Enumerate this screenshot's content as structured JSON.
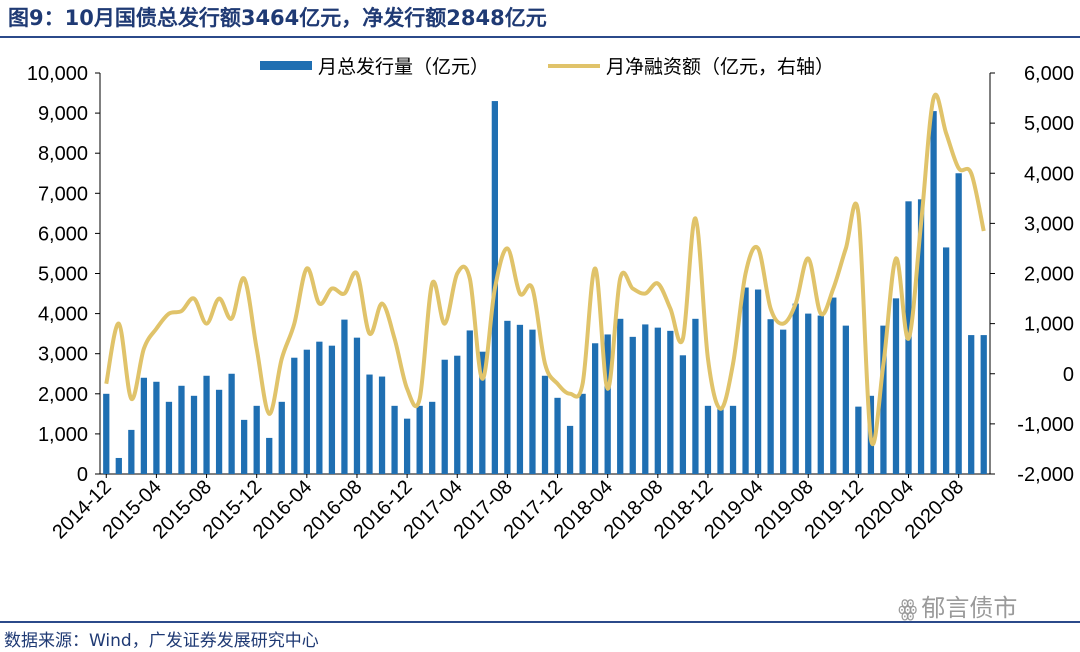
{
  "header": {
    "title": "图9：10月国债总发行额3464亿元，净发行额2848亿元"
  },
  "footer": {
    "source": "数据来源：Wind，广发证券发展研究中心"
  },
  "watermark": {
    "icon": "wechat-icon",
    "text": "郁言债市"
  },
  "colors": {
    "bar": "#1f6fb2",
    "line": "#e0c36a",
    "text": "#1f3a74"
  },
  "chart_data": {
    "type": "bar+line",
    "title": "10月国债总发行额3464亿元，净发行额2848亿元",
    "legend": {
      "placement": "top",
      "entries": [
        "月总发行量（亿元）",
        "月净融资额（亿元，右轴）"
      ]
    },
    "categories": [
      "2014-12",
      "2015-01",
      "2015-02",
      "2015-03",
      "2015-04",
      "2015-05",
      "2015-06",
      "2015-07",
      "2015-08",
      "2015-09",
      "2015-10",
      "2015-11",
      "2015-12",
      "2016-01",
      "2016-02",
      "2016-03",
      "2016-04",
      "2016-05",
      "2016-06",
      "2016-07",
      "2016-08",
      "2016-09",
      "2016-10",
      "2016-11",
      "2016-12",
      "2017-01",
      "2017-02",
      "2017-03",
      "2017-04",
      "2017-05",
      "2017-06",
      "2017-07",
      "2017-08",
      "2017-09",
      "2017-10",
      "2017-11",
      "2017-12",
      "2018-01",
      "2018-02",
      "2018-03",
      "2018-04",
      "2018-05",
      "2018-06",
      "2018-07",
      "2018-08",
      "2018-09",
      "2018-10",
      "2018-11",
      "2018-12",
      "2019-01",
      "2019-02",
      "2019-03",
      "2019-04",
      "2019-05",
      "2019-06",
      "2019-07",
      "2019-08",
      "2019-09",
      "2019-10",
      "2019-11",
      "2019-12",
      "2020-01",
      "2020-02",
      "2020-03",
      "2020-04",
      "2020-05",
      "2020-06",
      "2020-07",
      "2020-08",
      "2020-09",
      "2020-10"
    ],
    "x_tick_labels": [
      "2014-12",
      "2015-04",
      "2015-08",
      "2015-12",
      "2016-04",
      "2016-08",
      "2016-12",
      "2017-04",
      "2017-08",
      "2017-12",
      "2018-04",
      "2018-08",
      "2018-12",
      "2019-04",
      "2019-08",
      "2019-12",
      "2020-04",
      "2020-08"
    ],
    "series": [
      {
        "name": "月总发行量（亿元）",
        "type": "bar",
        "axis": "left",
        "values": [
          2000,
          400,
          1100,
          2400,
          2300,
          1800,
          2200,
          1950,
          2450,
          2100,
          2500,
          1350,
          1700,
          900,
          1800,
          2900,
          3100,
          3300,
          3200,
          3850,
          3400,
          2480,
          2430,
          1700,
          1380,
          1700,
          1800,
          2850,
          2950,
          3580,
          3050,
          9300,
          3820,
          3720,
          3600,
          2450,
          1900,
          1200,
          2000,
          3260,
          3480,
          3870,
          3420,
          3730,
          3650,
          3570,
          2960,
          3870,
          1700,
          1620,
          1700,
          4650,
          4600,
          3860,
          3600,
          4250,
          4000,
          3950,
          4400,
          3700,
          1680,
          1950,
          3700,
          4380,
          6800,
          6850,
          9050,
          5650,
          7500,
          3464,
          3464
        ]
      },
      {
        "name": "月净融资额（亿元，右轴）",
        "type": "line",
        "axis": "right",
        "values": [
          -200,
          1000,
          -500,
          500,
          900,
          1200,
          1250,
          1500,
          1000,
          1500,
          1100,
          1900,
          500,
          -800,
          300,
          1000,
          2100,
          1400,
          1700,
          1600,
          2000,
          800,
          1400,
          700,
          -300,
          -500,
          1800,
          1000,
          2000,
          1900,
          -100,
          1700,
          2500,
          1600,
          1700,
          200,
          -200,
          -400,
          -200,
          2100,
          -300,
          1900,
          1700,
          1600,
          1800,
          1300,
          700,
          3100,
          300,
          -700,
          200,
          2000,
          2500,
          1300,
          1000,
          1400,
          2300,
          1200,
          1700,
          2500,
          3200,
          -1300,
          200,
          2300,
          700,
          3000,
          5500,
          4800,
          4100,
          4000,
          2848
        ]
      }
    ],
    "y_left": {
      "ylim": [
        0,
        10000
      ],
      "ticks": [
        "0",
        "1,000",
        "2,000",
        "3,000",
        "4,000",
        "5,000",
        "6,000",
        "7,000",
        "8,000",
        "9,000",
        "10,000"
      ]
    },
    "y_right": {
      "ylim": [
        -2000,
        6000
      ],
      "ticks": [
        "-2,000",
        "-1,000",
        "0",
        "1,000",
        "2,000",
        "3,000",
        "4,000",
        "5,000",
        "6,000"
      ]
    },
    "grid": false
  }
}
